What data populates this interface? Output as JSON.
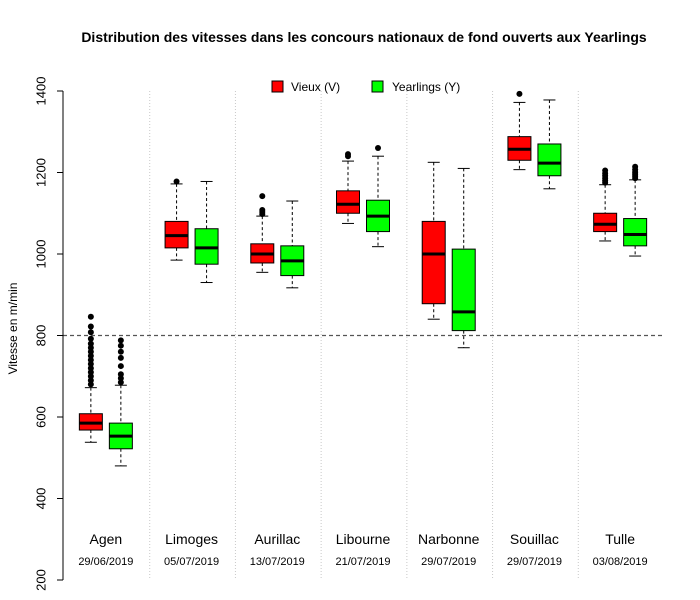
{
  "chart_data": {
    "type": "boxplot",
    "title": "Distribution des vitesses dans les concours nationaux de fond ouverts aux Yearlings",
    "xlabel": "",
    "ylabel": "Vitesse en m/min",
    "ylim": [
      200,
      1400
    ],
    "yticks": [
      200,
      400,
      600,
      800,
      1000,
      1200,
      1400
    ],
    "reference_line": {
      "y": 800,
      "style": "dashed"
    },
    "grid": "vertical dotted separators between races",
    "legend_position": "top-center",
    "series": [
      {
        "key": "V",
        "name": "Vieux (V)",
        "color": "#ff0000"
      },
      {
        "key": "Y",
        "name": "Yearlings (Y)",
        "color": "#00ff00"
      }
    ],
    "groups": [
      {
        "name": "Agen",
        "date": "29/06/2019",
        "V": {
          "lower_whisker": 538,
          "q1": 568,
          "median": 585,
          "q3": 608,
          "upper_whisker": 672,
          "outliers": [
            680,
            690,
            700,
            710,
            720,
            730,
            740,
            750,
            760,
            770,
            780,
            792,
            808,
            822,
            846
          ]
        },
        "Y": {
          "lower_whisker": 480,
          "q1": 522,
          "median": 553,
          "q3": 585,
          "upper_whisker": 678,
          "outliers": [
            685,
            695,
            705,
            725,
            745,
            760,
            775,
            788
          ]
        }
      },
      {
        "name": "Limoges",
        "date": "05/07/2019",
        "V": {
          "lower_whisker": 985,
          "q1": 1015,
          "median": 1045,
          "q3": 1080,
          "upper_whisker": 1172,
          "outliers": [
            1178
          ]
        },
        "Y": {
          "lower_whisker": 930,
          "q1": 975,
          "median": 1015,
          "q3": 1062,
          "upper_whisker": 1178,
          "outliers": []
        }
      },
      {
        "name": "Aurillac",
        "date": "13/07/2019",
        "V": {
          "lower_whisker": 955,
          "q1": 978,
          "median": 1000,
          "q3": 1025,
          "upper_whisker": 1093,
          "outliers": [
            1098,
            1103,
            1108,
            1142
          ]
        },
        "Y": {
          "lower_whisker": 917,
          "q1": 947,
          "median": 983,
          "q3": 1020,
          "upper_whisker": 1130,
          "outliers": []
        }
      },
      {
        "name": "Libourne",
        "date": "21/07/2019",
        "V": {
          "lower_whisker": 1075,
          "q1": 1100,
          "median": 1122,
          "q3": 1155,
          "upper_whisker": 1228,
          "outliers": [
            1240,
            1245
          ]
        },
        "Y": {
          "lower_whisker": 1018,
          "q1": 1055,
          "median": 1093,
          "q3": 1132,
          "upper_whisker": 1240,
          "outliers": [
            1260
          ]
        }
      },
      {
        "name": "Narbonne",
        "date": "29/07/2019",
        "V": {
          "lower_whisker": 840,
          "q1": 878,
          "median": 1000,
          "q3": 1080,
          "upper_whisker": 1225,
          "outliers": []
        },
        "Y": {
          "lower_whisker": 770,
          "q1": 812,
          "median": 858,
          "q3": 1012,
          "upper_whisker": 1210,
          "outliers": []
        }
      },
      {
        "name": "Souillac",
        "date": "29/07/2019",
        "V": {
          "lower_whisker": 1207,
          "q1": 1230,
          "median": 1257,
          "q3": 1288,
          "upper_whisker": 1372,
          "outliers": [
            1393
          ]
        },
        "Y": {
          "lower_whisker": 1160,
          "q1": 1192,
          "median": 1223,
          "q3": 1270,
          "upper_whisker": 1378,
          "outliers": []
        }
      },
      {
        "name": "Tulle",
        "date": "03/08/2019",
        "V": {
          "lower_whisker": 1032,
          "q1": 1055,
          "median": 1073,
          "q3": 1100,
          "upper_whisker": 1170,
          "outliers": [
            1175,
            1180,
            1186,
            1192,
            1198,
            1205
          ]
        },
        "Y": {
          "lower_whisker": 995,
          "q1": 1020,
          "median": 1048,
          "q3": 1087,
          "upper_whisker": 1182,
          "outliers": [
            1186,
            1191,
            1196,
            1201,
            1207,
            1214
          ]
        }
      }
    ]
  }
}
